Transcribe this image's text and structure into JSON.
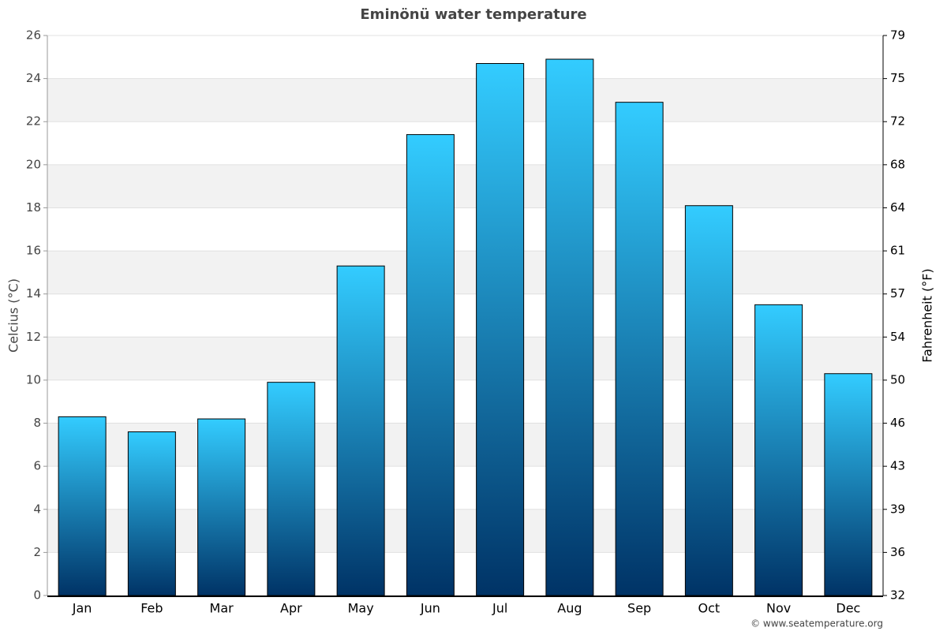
{
  "chart_data": {
    "type": "bar",
    "title": "Eminönü water temperature",
    "y_label": "Celcius (°C)",
    "y2_label": "Fahrenheit (°F)",
    "credit": "© www.seatemperature.org",
    "categories": [
      "Jan",
      "Feb",
      "Mar",
      "Apr",
      "May",
      "Jun",
      "Jul",
      "Aug",
      "Sep",
      "Oct",
      "Nov",
      "Dec"
    ],
    "values": [
      8.3,
      7.6,
      8.2,
      9.9,
      15.3,
      21.4,
      24.7,
      24.9,
      22.9,
      18.1,
      13.5,
      10.3
    ],
    "color_top": "#33ccff",
    "color_bottom": "#003366",
    "ylim": [
      0,
      26
    ],
    "yticks": [
      0,
      2,
      4,
      6,
      8,
      10,
      12,
      14,
      16,
      18,
      20,
      22,
      24,
      26
    ],
    "y2lim": [
      32,
      78.8
    ],
    "y2ticks": [
      32,
      {
        "value": 35.6,
        "label": "36"
      },
      {
        "value": 39.2,
        "label": "39"
      },
      {
        "value": 42.8,
        "label": "43"
      },
      {
        "value": 46.4,
        "label": "46"
      },
      50,
      {
        "value": 53.6,
        "label": "54"
      },
      {
        "value": 57.2,
        "label": "57"
      },
      {
        "value": 60.8,
        "label": "61"
      },
      {
        "value": 64.4,
        "label": "64"
      },
      68,
      {
        "value": 71.6,
        "label": "72"
      },
      {
        "value": 75.2,
        "label": "75"
      },
      {
        "value": 78.8,
        "label": "79"
      }
    ],
    "grid": true
  }
}
